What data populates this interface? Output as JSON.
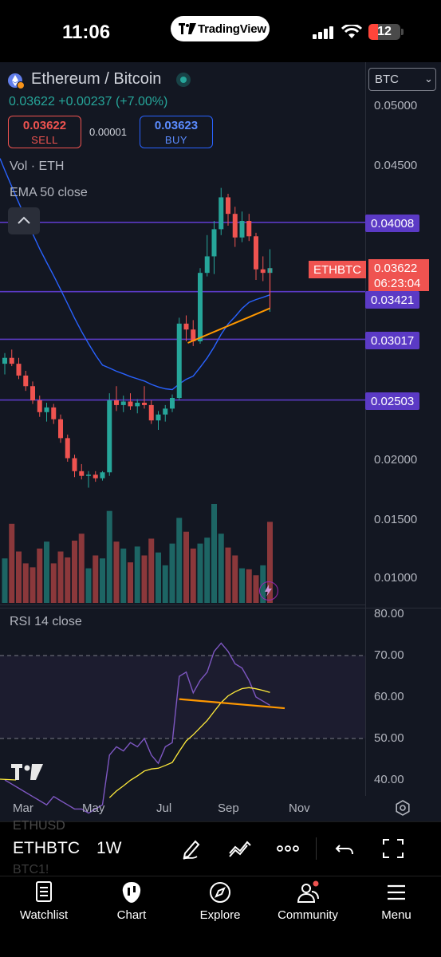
{
  "status_bar": {
    "time": "11:06",
    "app_pill": "TradingView",
    "battery": "12"
  },
  "header": {
    "symbol_name": "Ethereum / Bitcoin",
    "last_price": "0.03622",
    "change": "+0.00237",
    "change_pct": "(+7.00%)",
    "sell_price": "0.03622",
    "sell_label": "SELL",
    "spread": "0.00001",
    "buy_price": "0.03623",
    "buy_label": "BUY",
    "currency": "BTC",
    "volume_label": "Vol · ETH",
    "ema_label": "EMA 50 close"
  },
  "price_axis": [
    "0.05000",
    "0.04500",
    "0.02000",
    "0.01500",
    "0.01000"
  ],
  "levels": [
    "0.04008",
    "0.03421",
    "0.03017",
    "0.02503"
  ],
  "price_tag": {
    "symbol": "ETHBTC",
    "price": "0.03622",
    "countdown": "06:23:04"
  },
  "rsi": {
    "label": "RSI 14 close",
    "axis": [
      "80.00",
      "70.00",
      "60.00",
      "50.00",
      "40.00"
    ]
  },
  "time_axis": [
    "Mar",
    "May",
    "Jul",
    "Sep",
    "Nov"
  ],
  "toolbar": {
    "ghost_top": "ETHUSD",
    "symbol": "ETHBTC",
    "interval": "1W",
    "ghost_bottom": "BTC1!"
  },
  "tabs": [
    {
      "label": "Watchlist",
      "icon": "watchlist-icon"
    },
    {
      "label": "Chart",
      "icon": "chart-icon"
    },
    {
      "label": "Explore",
      "icon": "compass-icon"
    },
    {
      "label": "Community",
      "icon": "community-icon"
    },
    {
      "label": "Menu",
      "icon": "menu-icon"
    }
  ],
  "colors": {
    "up": "#26a69a",
    "down": "#ef5350",
    "level": "#5b3ac5",
    "ema": "#2962ff",
    "rsi": "#7e57c2",
    "rsi_ma": "#ffeb3b",
    "trendline": "#ff9800"
  },
  "chart_data": {
    "type": "candlestick",
    "interval": "1W",
    "symbol": "ETHBTC",
    "candles": [
      {
        "o": 0.0281,
        "h": 0.029,
        "l": 0.0272,
        "c": 0.0286
      },
      {
        "o": 0.0286,
        "h": 0.0293,
        "l": 0.0279,
        "c": 0.0281
      },
      {
        "o": 0.0281,
        "h": 0.0286,
        "l": 0.0268,
        "c": 0.0271
      },
      {
        "o": 0.0271,
        "h": 0.0275,
        "l": 0.0258,
        "c": 0.0262
      },
      {
        "o": 0.0262,
        "h": 0.0266,
        "l": 0.0247,
        "c": 0.025
      },
      {
        "o": 0.025,
        "h": 0.0254,
        "l": 0.0236,
        "c": 0.024
      },
      {
        "o": 0.024,
        "h": 0.0248,
        "l": 0.0232,
        "c": 0.0244
      },
      {
        "o": 0.0244,
        "h": 0.0247,
        "l": 0.023,
        "c": 0.0234
      },
      {
        "o": 0.0234,
        "h": 0.0238,
        "l": 0.0214,
        "c": 0.0218
      },
      {
        "o": 0.0218,
        "h": 0.0221,
        "l": 0.0198,
        "c": 0.0201
      },
      {
        "o": 0.0201,
        "h": 0.0204,
        "l": 0.0185,
        "c": 0.019
      },
      {
        "o": 0.019,
        "h": 0.0196,
        "l": 0.0183,
        "c": 0.0186
      },
      {
        "o": 0.0186,
        "h": 0.019,
        "l": 0.0176,
        "c": 0.0187
      },
      {
        "o": 0.0187,
        "h": 0.019,
        "l": 0.0181,
        "c": 0.0184
      },
      {
        "o": 0.0184,
        "h": 0.019,
        "l": 0.0182,
        "c": 0.0189
      },
      {
        "o": 0.0189,
        "h": 0.0256,
        "l": 0.0186,
        "c": 0.025
      },
      {
        "o": 0.025,
        "h": 0.0262,
        "l": 0.0241,
        "c": 0.0246
      },
      {
        "o": 0.0246,
        "h": 0.0254,
        "l": 0.024,
        "c": 0.0249
      },
      {
        "o": 0.0249,
        "h": 0.0256,
        "l": 0.0242,
        "c": 0.0245
      },
      {
        "o": 0.0245,
        "h": 0.0251,
        "l": 0.0239,
        "c": 0.0248
      },
      {
        "o": 0.0248,
        "h": 0.0262,
        "l": 0.0243,
        "c": 0.0246
      },
      {
        "o": 0.0246,
        "h": 0.025,
        "l": 0.023,
        "c": 0.0233
      },
      {
        "o": 0.0233,
        "h": 0.0241,
        "l": 0.0225,
        "c": 0.0238
      },
      {
        "o": 0.0238,
        "h": 0.0246,
        "l": 0.0232,
        "c": 0.0243
      },
      {
        "o": 0.0243,
        "h": 0.0255,
        "l": 0.024,
        "c": 0.0252
      },
      {
        "o": 0.0252,
        "h": 0.032,
        "l": 0.025,
        "c": 0.0315
      },
      {
        "o": 0.0315,
        "h": 0.0322,
        "l": 0.03,
        "c": 0.031
      },
      {
        "o": 0.031,
        "h": 0.0318,
        "l": 0.0296,
        "c": 0.03
      },
      {
        "o": 0.03,
        "h": 0.0362,
        "l": 0.0298,
        "c": 0.0358
      },
      {
        "o": 0.0358,
        "h": 0.039,
        "l": 0.0355,
        "c": 0.0372
      },
      {
        "o": 0.0372,
        "h": 0.0402,
        "l": 0.0357,
        "c": 0.0395
      },
      {
        "o": 0.0395,
        "h": 0.043,
        "l": 0.039,
        "c": 0.0422
      },
      {
        "o": 0.0422,
        "h": 0.0425,
        "l": 0.0398,
        "c": 0.0408
      },
      {
        "o": 0.0408,
        "h": 0.0414,
        "l": 0.038,
        "c": 0.0388
      },
      {
        "o": 0.0388,
        "h": 0.041,
        "l": 0.0384,
        "c": 0.0402
      },
      {
        "o": 0.0402,
        "h": 0.0408,
        "l": 0.0385,
        "c": 0.0389
      },
      {
        "o": 0.0389,
        "h": 0.0392,
        "l": 0.0352,
        "c": 0.0361
      },
      {
        "o": 0.0361,
        "h": 0.0372,
        "l": 0.0351,
        "c": 0.0358
      },
      {
        "o": 0.0358,
        "h": 0.0378,
        "l": 0.0325,
        "c": 0.0362
      }
    ],
    "volume_up": [
      true,
      false,
      false,
      false,
      false,
      false,
      true,
      false,
      false,
      false,
      false,
      false,
      true,
      false,
      true,
      true,
      false,
      true,
      false,
      true,
      false,
      false,
      true,
      true,
      true,
      true,
      false,
      false,
      true,
      true,
      true,
      true,
      false,
      false,
      true,
      false,
      false,
      true,
      false
    ],
    "volume": [
      0.45,
      0.8,
      0.52,
      0.4,
      0.36,
      0.55,
      0.62,
      0.4,
      0.52,
      0.46,
      0.63,
      0.7,
      0.35,
      0.48,
      0.45,
      0.93,
      0.62,
      0.55,
      0.41,
      0.57,
      0.48,
      0.65,
      0.51,
      0.38,
      0.6,
      0.86,
      0.72,
      0.55,
      0.6,
      0.66,
      1.0,
      0.7,
      0.56,
      0.48,
      0.35,
      0.34,
      0.28,
      0.38,
      0.82
    ],
    "rsi_values": [
      40,
      39,
      38,
      37,
      36,
      35,
      34,
      36,
      35,
      34,
      33,
      33,
      32,
      33,
      34,
      46,
      48,
      47,
      49,
      48,
      50,
      46,
      44,
      48,
      49,
      65,
      66,
      61,
      64,
      66,
      71,
      73,
      71,
      68,
      67,
      64,
      60,
      59,
      58
    ],
    "rsi_ylim": [
      40,
      80
    ],
    "price_ylim": [
      0.01,
      0.05
    ]
  }
}
